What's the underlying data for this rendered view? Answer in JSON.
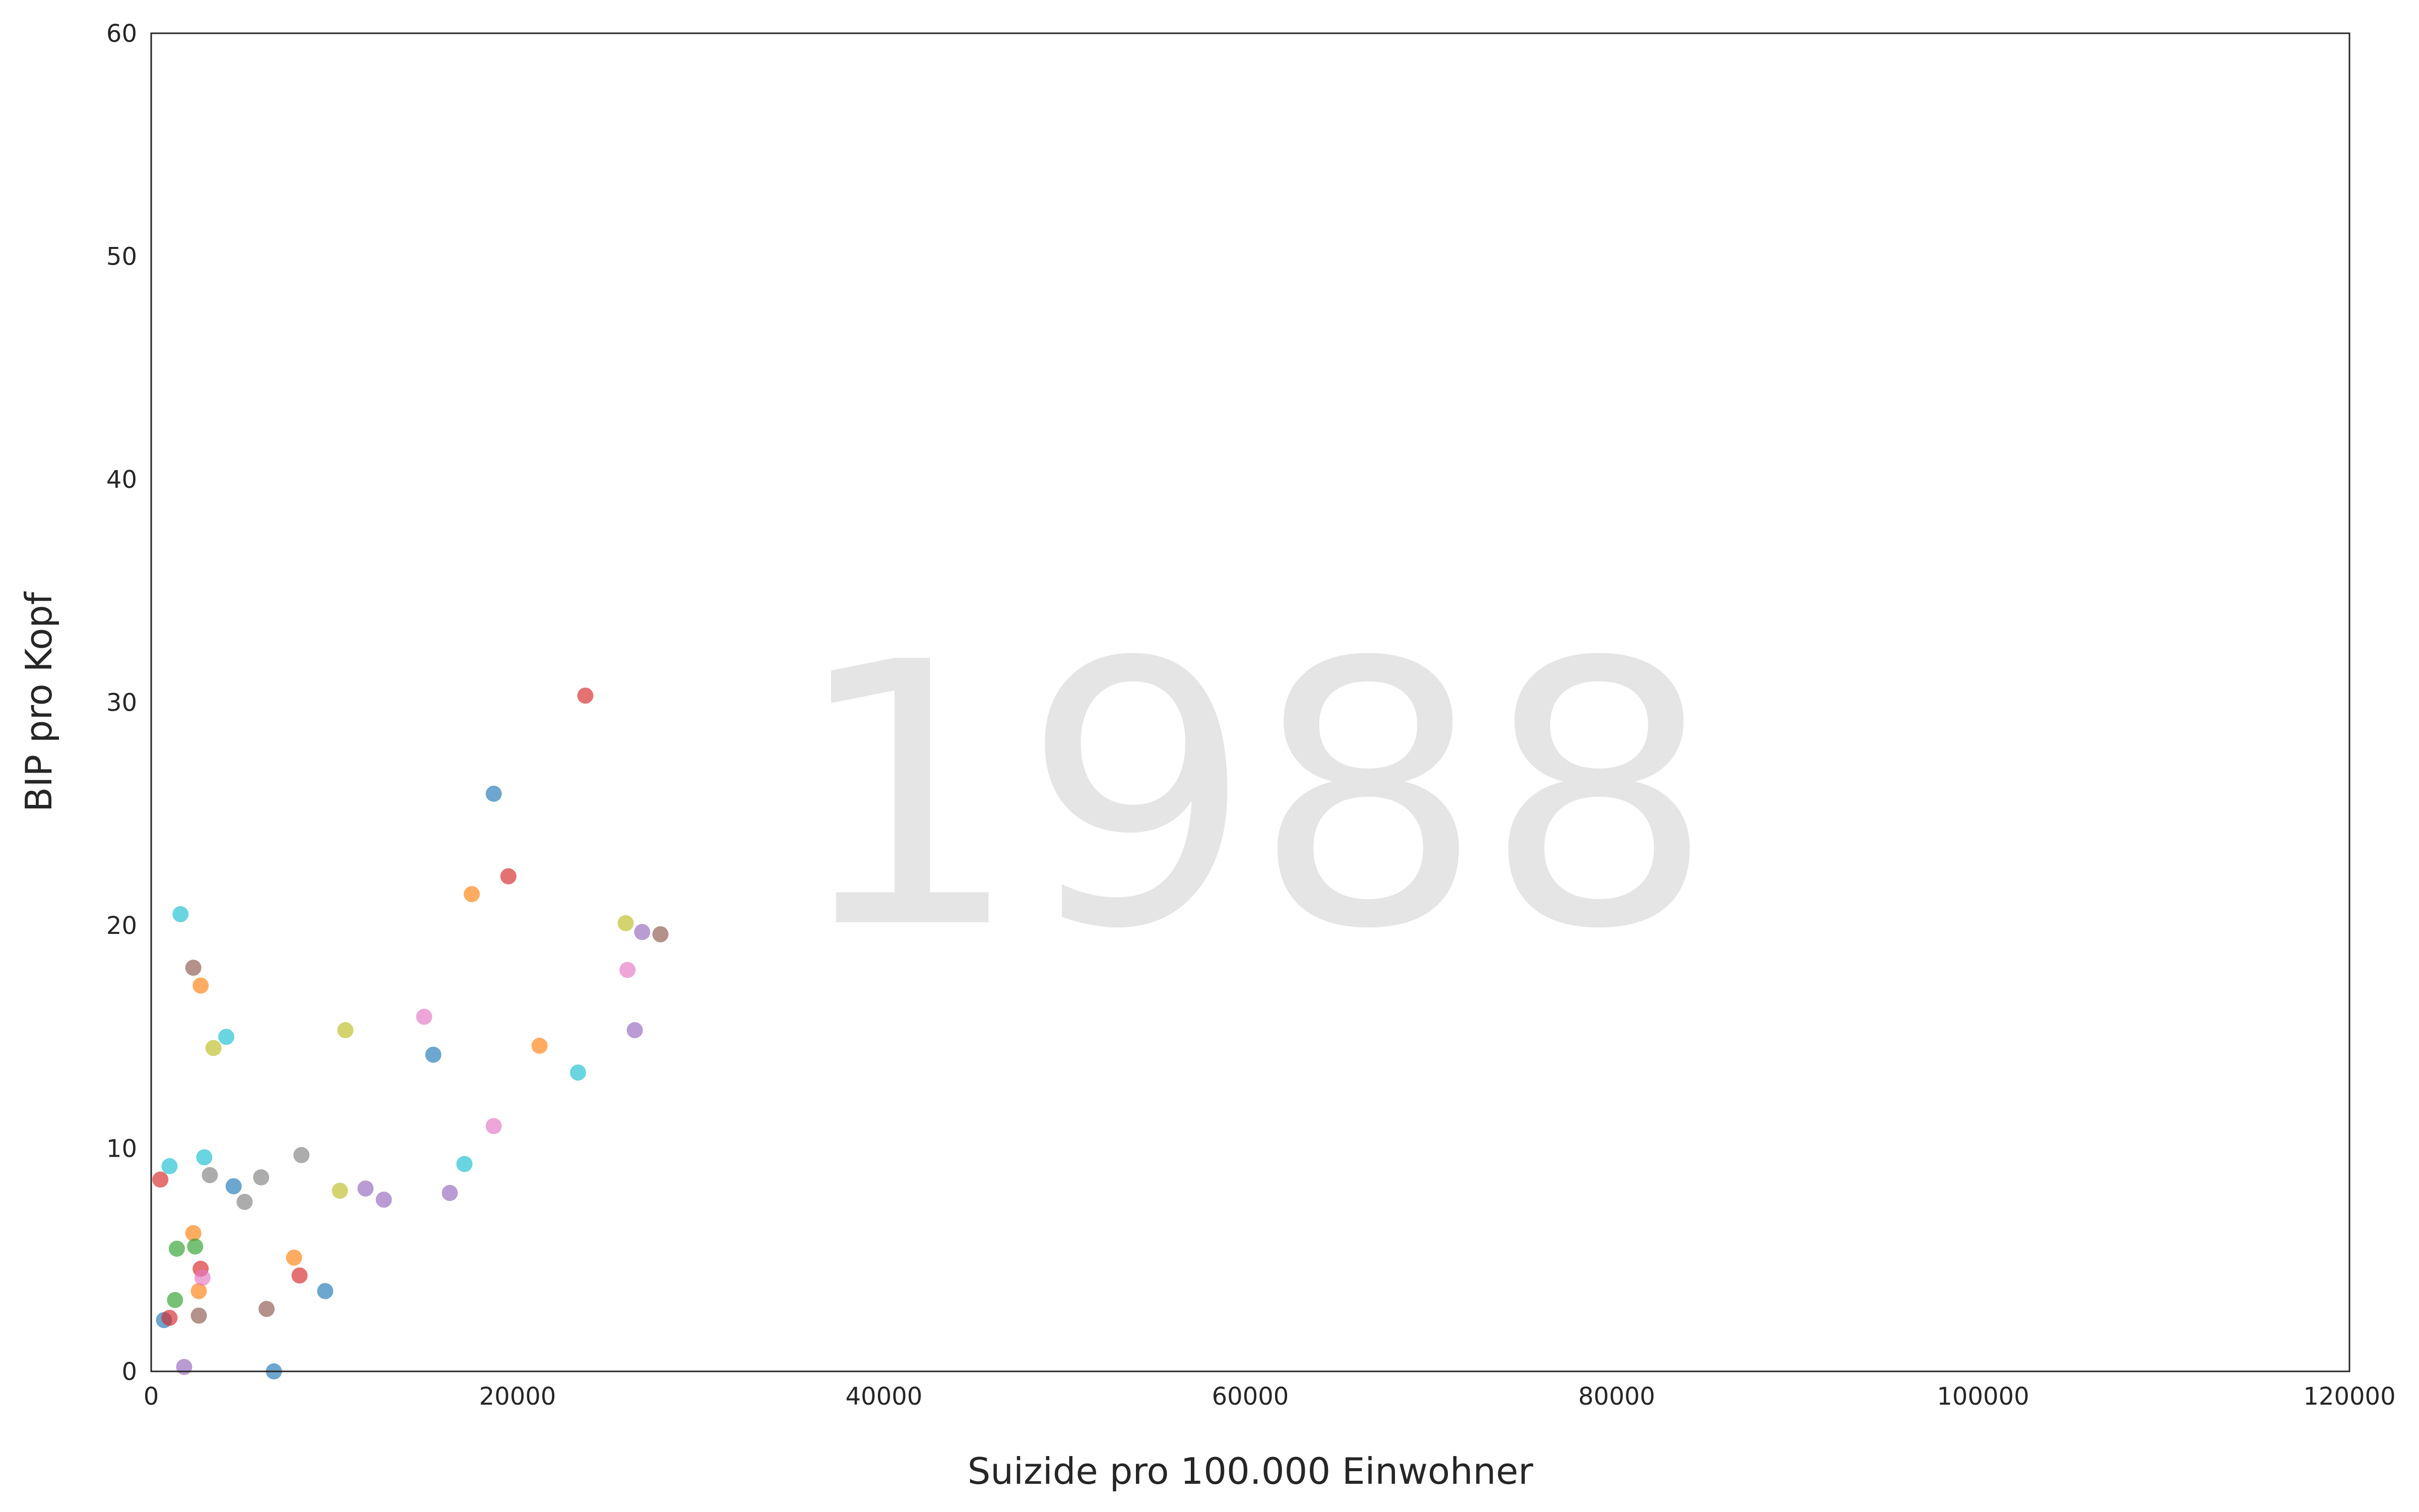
{
  "chart_data": {
    "type": "scatter",
    "title": "",
    "xlabel": "Suizide pro 100.000 Einwohner",
    "ylabel": "BIP pro Kopf",
    "annotation": "1988",
    "xlim": [
      0,
      120000
    ],
    "ylim": [
      0,
      60
    ],
    "xticks": [
      0,
      20000,
      40000,
      60000,
      80000,
      100000,
      120000
    ],
    "yticks": [
      0,
      10,
      20,
      30,
      40,
      50,
      60
    ],
    "grid": false,
    "legend": "none",
    "point_alpha": 0.65,
    "points": [
      {
        "x": 500,
        "y": 8.6,
        "color": "#d62728"
      },
      {
        "x": 700,
        "y": 2.3,
        "color": "#1f77b4"
      },
      {
        "x": 1000,
        "y": 2.4,
        "color": "#d62728"
      },
      {
        "x": 1000,
        "y": 9.2,
        "color": "#17becf"
      },
      {
        "x": 1300,
        "y": 3.2,
        "color": "#2ca02c"
      },
      {
        "x": 1400,
        "y": 5.5,
        "color": "#2ca02c"
      },
      {
        "x": 1600,
        "y": 20.5,
        "color": "#17becf"
      },
      {
        "x": 1800,
        "y": 0.2,
        "color": "#9467bd"
      },
      {
        "x": 2300,
        "y": 18.1,
        "color": "#8c564b"
      },
      {
        "x": 2300,
        "y": 6.2,
        "color": "#ff7f0e"
      },
      {
        "x": 2400,
        "y": 5.6,
        "color": "#2ca02c"
      },
      {
        "x": 2600,
        "y": 3.6,
        "color": "#ff7f0e"
      },
      {
        "x": 2600,
        "y": 2.5,
        "color": "#8c564b"
      },
      {
        "x": 2700,
        "y": 17.3,
        "color": "#ff7f0e"
      },
      {
        "x": 2700,
        "y": 4.6,
        "color": "#d62728"
      },
      {
        "x": 2800,
        "y": 4.2,
        "color": "#e377c2"
      },
      {
        "x": 2900,
        "y": 9.6,
        "color": "#17becf"
      },
      {
        "x": 3200,
        "y": 8.8,
        "color": "#7f7f7f"
      },
      {
        "x": 3400,
        "y": 14.5,
        "color": "#bcbd22"
      },
      {
        "x": 4100,
        "y": 15.0,
        "color": "#17becf"
      },
      {
        "x": 4500,
        "y": 8.3,
        "color": "#1f77b4"
      },
      {
        "x": 5100,
        "y": 7.6,
        "color": "#7f7f7f"
      },
      {
        "x": 6000,
        "y": 8.7,
        "color": "#7f7f7f"
      },
      {
        "x": 6300,
        "y": 2.8,
        "color": "#8c564b"
      },
      {
        "x": 6700,
        "y": 0.0,
        "color": "#1f77b4"
      },
      {
        "x": 7800,
        "y": 5.1,
        "color": "#ff7f0e"
      },
      {
        "x": 8100,
        "y": 4.3,
        "color": "#d62728"
      },
      {
        "x": 8200,
        "y": 9.7,
        "color": "#7f7f7f"
      },
      {
        "x": 9500,
        "y": 3.6,
        "color": "#1f77b4"
      },
      {
        "x": 10300,
        "y": 8.1,
        "color": "#bcbd22"
      },
      {
        "x": 10600,
        "y": 15.3,
        "color": "#bcbd22"
      },
      {
        "x": 11700,
        "y": 8.2,
        "color": "#9467bd"
      },
      {
        "x": 12700,
        "y": 7.7,
        "color": "#9467bd"
      },
      {
        "x": 14900,
        "y": 15.9,
        "color": "#e377c2"
      },
      {
        "x": 15400,
        "y": 14.2,
        "color": "#1f77b4"
      },
      {
        "x": 16300,
        "y": 8.0,
        "color": "#9467bd"
      },
      {
        "x": 17100,
        "y": 9.3,
        "color": "#17becf"
      },
      {
        "x": 17500,
        "y": 21.4,
        "color": "#ff7f0e"
      },
      {
        "x": 18700,
        "y": 11.0,
        "color": "#e377c2"
      },
      {
        "x": 18700,
        "y": 25.9,
        "color": "#1f77b4"
      },
      {
        "x": 19500,
        "y": 22.2,
        "color": "#d62728"
      },
      {
        "x": 21200,
        "y": 14.6,
        "color": "#ff7f0e"
      },
      {
        "x": 23300,
        "y": 13.4,
        "color": "#17becf"
      },
      {
        "x": 23700,
        "y": 30.3,
        "color": "#d62728"
      },
      {
        "x": 25900,
        "y": 20.1,
        "color": "#bcbd22"
      },
      {
        "x": 26000,
        "y": 18.0,
        "color": "#e377c2"
      },
      {
        "x": 26400,
        "y": 15.3,
        "color": "#9467bd"
      },
      {
        "x": 26800,
        "y": 19.7,
        "color": "#9467bd"
      },
      {
        "x": 27800,
        "y": 19.6,
        "color": "#8c564b"
      }
    ]
  }
}
